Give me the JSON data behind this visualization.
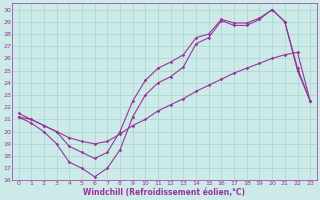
{
  "bg_color": "#cceae7",
  "line_color": "#993399",
  "grid_color": "#aad4d0",
  "xlabel": "Windchill (Refroidissement éolien,°C)",
  "xlabel_color": "#993399",
  "xlim": [
    -0.5,
    23.5
  ],
  "ylim": [
    16,
    30.5
  ],
  "yticks": [
    16,
    17,
    18,
    19,
    20,
    21,
    22,
    23,
    24,
    25,
    26,
    27,
    28,
    29,
    30
  ],
  "xticks": [
    0,
    1,
    2,
    3,
    4,
    5,
    6,
    7,
    8,
    9,
    10,
    11,
    12,
    13,
    14,
    15,
    16,
    17,
    18,
    19,
    20,
    21,
    22,
    23
  ],
  "line1_x": [
    0,
    1,
    2,
    3,
    4,
    5,
    6,
    7,
    8,
    9,
    10,
    11,
    12,
    13,
    14,
    15,
    16,
    17,
    18,
    19,
    20,
    21,
    22,
    23
  ],
  "line1_y": [
    21.2,
    20.7,
    20.0,
    19.0,
    17.5,
    17.0,
    16.3,
    17.0,
    18.5,
    21.2,
    23.0,
    24.0,
    24.5,
    25.3,
    27.2,
    27.7,
    29.1,
    28.7,
    28.7,
    29.2,
    30.0,
    29.0,
    25.0,
    22.5
  ],
  "line2_x": [
    0,
    1,
    2,
    3,
    4,
    5,
    6,
    7,
    8,
    9,
    10,
    11,
    12,
    13,
    14,
    15,
    16,
    17,
    18,
    19,
    20,
    21,
    22,
    23
  ],
  "line2_y": [
    21.5,
    21.0,
    20.5,
    20.0,
    18.8,
    18.3,
    17.8,
    18.3,
    20.0,
    22.5,
    24.2,
    25.2,
    25.7,
    26.3,
    27.7,
    28.0,
    29.2,
    28.9,
    28.9,
    29.3,
    30.0,
    29.0,
    25.2,
    22.5
  ],
  "line3_x": [
    0,
    1,
    2,
    3,
    4,
    5,
    6,
    7,
    8,
    9,
    10,
    11,
    12,
    13,
    14,
    15,
    16,
    17,
    18,
    19,
    20,
    21,
    22,
    23
  ],
  "line3_y": [
    21.2,
    21.0,
    20.5,
    20.0,
    19.5,
    19.2,
    19.0,
    19.2,
    19.8,
    20.5,
    21.0,
    21.7,
    22.2,
    22.7,
    23.3,
    23.8,
    24.3,
    24.8,
    25.2,
    25.6,
    26.0,
    26.3,
    26.5,
    22.5
  ],
  "marker": "D",
  "markersize": 1.8,
  "linewidth": 0.8
}
